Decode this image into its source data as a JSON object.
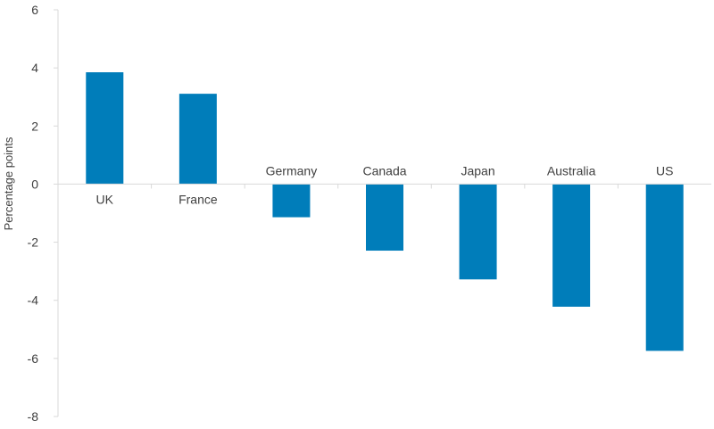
{
  "chart_data": {
    "type": "bar",
    "categories": [
      "UK",
      "France",
      "Germany",
      "Canada",
      "Japan",
      "Australia",
      "US"
    ],
    "values": [
      3.85,
      3.11,
      -1.14,
      -2.29,
      -3.28,
      -4.22,
      -5.74
    ],
    "title": "",
    "xlabel": "",
    "ylabel": "Percentage points",
    "ylim": [
      -8,
      6
    ],
    "yticks": [
      "6",
      "4",
      "2",
      "0",
      "-2",
      "-4",
      "-6",
      "-8"
    ],
    "grid": false,
    "legend": "none",
    "bar_color": "#007DBA",
    "axis_color": "#D9D9D9"
  }
}
